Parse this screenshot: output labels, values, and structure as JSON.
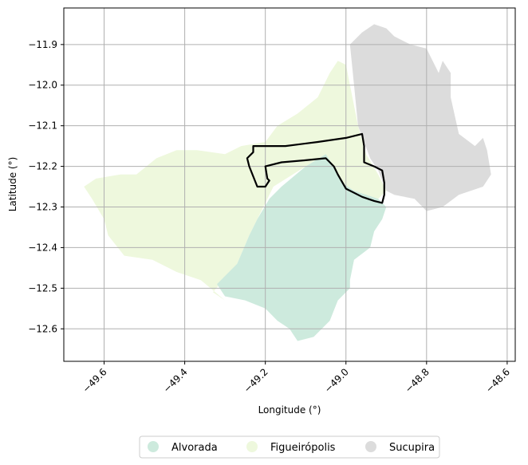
{
  "axes": {
    "xlabel": "Longitude (°)",
    "ylabel": "Latitude (°)",
    "xlim": [
      -49.7,
      -48.58
    ],
    "ylim": [
      -12.68,
      -11.81
    ],
    "xticks": [
      -49.6,
      -49.4,
      -49.2,
      -49.0,
      -48.8,
      -48.6
    ],
    "xtick_labels": [
      "−49.6",
      "−49.4",
      "−49.2",
      "−49.0",
      "−48.8",
      "−48.6"
    ],
    "yticks": [
      -11.9,
      -12.0,
      -12.1,
      -12.2,
      -12.3,
      -12.4,
      -12.5,
      -12.6
    ],
    "ytick_labels": [
      "−11.9",
      "−12.0",
      "−12.1",
      "−12.2",
      "−12.3",
      "−12.4",
      "−12.5",
      "−12.6"
    ],
    "grid": true
  },
  "legend": {
    "placement": "bottom-center",
    "entries": [
      {
        "label": "Alvorada",
        "color": "#cdeadd"
      },
      {
        "label": "Figueirópolis",
        "color": "#eef8dd"
      },
      {
        "label": "Sucupira",
        "color": "#dcdcdc"
      }
    ]
  },
  "regions": [
    {
      "name": "Sucupira",
      "color": "#dcdcdc",
      "coords": [
        [
          -48.96,
          -11.87
        ],
        [
          -48.93,
          -11.85
        ],
        [
          -48.9,
          -11.86
        ],
        [
          -48.88,
          -11.88
        ],
        [
          -48.84,
          -11.9
        ],
        [
          -48.8,
          -11.91
        ],
        [
          -48.77,
          -11.97
        ],
        [
          -48.76,
          -11.94
        ],
        [
          -48.74,
          -11.97
        ],
        [
          -48.74,
          -12.03
        ],
        [
          -48.72,
          -12.12
        ],
        [
          -48.68,
          -12.15
        ],
        [
          -48.66,
          -12.13
        ],
        [
          -48.65,
          -12.16
        ],
        [
          -48.64,
          -12.22
        ],
        [
          -48.66,
          -12.25
        ],
        [
          -48.72,
          -12.27
        ],
        [
          -48.76,
          -12.3
        ],
        [
          -48.8,
          -12.31
        ],
        [
          -48.83,
          -12.28
        ],
        [
          -48.88,
          -12.27
        ],
        [
          -48.9,
          -12.26
        ],
        [
          -48.92,
          -12.21
        ],
        [
          -48.94,
          -12.18
        ],
        [
          -48.97,
          -12.1
        ],
        [
          -48.98,
          -12.0
        ],
        [
          -48.99,
          -11.9
        ]
      ]
    },
    {
      "name": "Figueirópolis",
      "color": "#eef8dd",
      "coords": [
        [
          -49.0,
          -11.95
        ],
        [
          -48.99,
          -12.0
        ],
        [
          -48.97,
          -12.1
        ],
        [
          -48.95,
          -12.17
        ],
        [
          -48.92,
          -12.22
        ],
        [
          -48.9,
          -12.26
        ],
        [
          -48.92,
          -12.28
        ],
        [
          -48.98,
          -12.26
        ],
        [
          -49.01,
          -12.24
        ],
        [
          -49.03,
          -12.2
        ],
        [
          -49.05,
          -12.17
        ],
        [
          -49.1,
          -12.2
        ],
        [
          -49.18,
          -12.25
        ],
        [
          -49.22,
          -12.33
        ],
        [
          -49.24,
          -12.37
        ],
        [
          -49.27,
          -12.44
        ],
        [
          -49.33,
          -12.51
        ],
        [
          -49.3,
          -12.53
        ],
        [
          -49.36,
          -12.48
        ],
        [
          -49.42,
          -12.46
        ],
        [
          -49.48,
          -12.43
        ],
        [
          -49.55,
          -12.42
        ],
        [
          -49.59,
          -12.37
        ],
        [
          -49.6,
          -12.33
        ],
        [
          -49.63,
          -12.28
        ],
        [
          -49.65,
          -12.25
        ],
        [
          -49.62,
          -12.23
        ],
        [
          -49.56,
          -12.22
        ],
        [
          -49.52,
          -12.22
        ],
        [
          -49.47,
          -12.18
        ],
        [
          -49.42,
          -12.16
        ],
        [
          -49.37,
          -12.16
        ],
        [
          -49.3,
          -12.17
        ],
        [
          -49.26,
          -12.15
        ],
        [
          -49.2,
          -12.14
        ],
        [
          -49.17,
          -12.1
        ],
        [
          -49.12,
          -12.07
        ],
        [
          -49.07,
          -12.03
        ],
        [
          -49.04,
          -11.97
        ],
        [
          -49.02,
          -11.94
        ]
      ]
    },
    {
      "name": "Alvorada",
      "color": "#cdeadd",
      "coords": [
        [
          -49.05,
          -12.17
        ],
        [
          -49.03,
          -12.2
        ],
        [
          -49.01,
          -12.24
        ],
        [
          -48.98,
          -12.26
        ],
        [
          -48.92,
          -12.28
        ],
        [
          -48.9,
          -12.3
        ],
        [
          -48.91,
          -12.33
        ],
        [
          -48.93,
          -12.36
        ],
        [
          -48.94,
          -12.4
        ],
        [
          -48.98,
          -12.43
        ],
        [
          -48.99,
          -12.48
        ],
        [
          -48.99,
          -12.5
        ],
        [
          -49.02,
          -12.53
        ],
        [
          -49.04,
          -12.58
        ],
        [
          -49.08,
          -12.62
        ],
        [
          -49.12,
          -12.63
        ],
        [
          -49.14,
          -12.6
        ],
        [
          -49.17,
          -12.58
        ],
        [
          -49.2,
          -12.55
        ],
        [
          -49.25,
          -12.53
        ],
        [
          -49.3,
          -12.52
        ],
        [
          -49.32,
          -12.49
        ],
        [
          -49.27,
          -12.44
        ],
        [
          -49.24,
          -12.37
        ],
        [
          -49.22,
          -12.33
        ],
        [
          -49.19,
          -12.28
        ],
        [
          -49.16,
          -12.25
        ],
        [
          -49.1,
          -12.2
        ]
      ]
    }
  ],
  "outline": {
    "coords": [
      [
        -49.23,
        -12.15
      ],
      [
        -49.15,
        -12.15
      ],
      [
        -49.07,
        -12.14
      ],
      [
        -49.0,
        -12.13
      ],
      [
        -48.96,
        -12.12
      ],
      [
        -48.955,
        -12.15
      ],
      [
        -48.955,
        -12.19
      ],
      [
        -48.93,
        -12.2
      ],
      [
        -48.91,
        -12.21
      ],
      [
        -48.905,
        -12.24
      ],
      [
        -48.905,
        -12.27
      ],
      [
        -48.91,
        -12.29
      ],
      [
        -48.93,
        -12.285
      ],
      [
        -48.96,
        -12.275
      ],
      [
        -48.98,
        -12.265
      ],
      [
        -49.0,
        -12.255
      ],
      [
        -49.02,
        -12.22
      ],
      [
        -49.03,
        -12.2
      ],
      [
        -49.05,
        -12.18
      ],
      [
        -49.1,
        -12.185
      ],
      [
        -49.16,
        -12.19
      ],
      [
        -49.2,
        -12.2
      ],
      [
        -49.195,
        -12.23
      ],
      [
        -49.19,
        -12.235
      ],
      [
        -49.2,
        -12.25
      ],
      [
        -49.22,
        -12.25
      ],
      [
        -49.24,
        -12.2
      ],
      [
        -49.245,
        -12.18
      ],
      [
        -49.23,
        -12.165
      ]
    ]
  }
}
